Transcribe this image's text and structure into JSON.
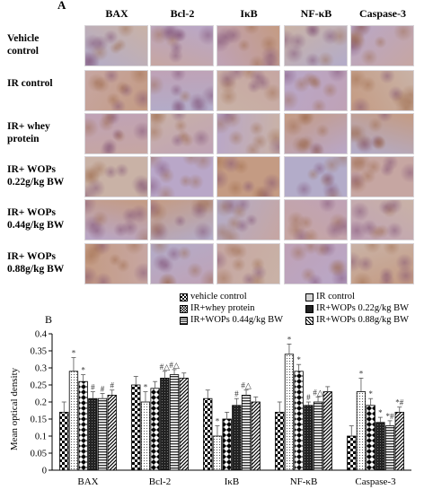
{
  "panel_a": {
    "label": "A",
    "columns": [
      "BAX",
      "Bcl-2",
      "IκB",
      "NF-κB",
      "Caspase-3"
    ],
    "rows": [
      {
        "line1": "Vehicle",
        "line2": "control"
      },
      {
        "line1": "IR control",
        "line2": ""
      },
      {
        "line1": "IR+  whey",
        "line2": "protein"
      },
      {
        "line1": "IR+ WOPs",
        "line2": "0.22g/kg BW"
      },
      {
        "line1": "IR+ WOPs",
        "line2": "0.44g/kg BW"
      },
      {
        "line1": "IR+ WOPs",
        "line2": "0.88g/kg BW"
      }
    ],
    "stain_colors": [
      "#b3acc9",
      "#c6a6a2",
      "#bfa2b6",
      "#c9b2a6",
      "#b9a7c8",
      "#c49b83"
    ]
  },
  "chart_data": {
    "type": "bar",
    "panel_label": "B",
    "categories": [
      "BAX",
      "Bcl-2",
      "IκB",
      "NF-κB",
      "Caspase-3"
    ],
    "ylabel": "Mean optical density",
    "xlabel": "",
    "ylim": [
      0,
      0.4
    ],
    "yticks": [
      "0",
      "0.05",
      "0.1",
      "0.15",
      "0.2",
      "0.25",
      "0.3",
      "0.35",
      "0.4"
    ],
    "grid": false,
    "legend_position": "top-right",
    "series": [
      {
        "name": "vehicle control",
        "pattern": "checker",
        "values": [
          0.17,
          0.25,
          0.21,
          0.17,
          0.1
        ],
        "errors": [
          0.03,
          0.025,
          0.025,
          0.03,
          0.03
        ],
        "marks": [
          "",
          "",
          "",
          "",
          ""
        ]
      },
      {
        "name": "IR control",
        "pattern": "dots",
        "values": [
          0.29,
          0.2,
          0.1,
          0.34,
          0.23
        ],
        "errors": [
          0.04,
          0.03,
          0.03,
          0.03,
          0.04
        ],
        "marks": [
          "*",
          "*",
          "*",
          "*",
          "*"
        ]
      },
      {
        "name": "IR+whey protein",
        "pattern": "diamonds",
        "values": [
          0.26,
          0.24,
          0.15,
          0.29,
          0.19
        ],
        "errors": [
          0.02,
          0.02,
          0.02,
          0.02,
          0.02
        ],
        "marks": [
          "*",
          "",
          "",
          "*",
          "*"
        ]
      },
      {
        "name": "IR+WOPs 0.22g/kg BW",
        "pattern": "solid-dark",
        "values": [
          0.21,
          0.27,
          0.19,
          0.19,
          0.14
        ],
        "errors": [
          0.02,
          0.02,
          0.02,
          0.01,
          0.015
        ],
        "marks": [
          "#",
          "#△",
          "#",
          "#",
          "*"
        ]
      },
      {
        "name": "IR+WOPs 0.44g/kg BW",
        "pattern": "hlines",
        "values": [
          0.21,
          0.28,
          0.22,
          0.2,
          0.13
        ],
        "errors": [
          0.015,
          0.015,
          0.015,
          0.015,
          0.015
        ],
        "marks": [
          "#",
          "#△",
          "#△",
          "#△",
          "*#"
        ]
      },
      {
        "name": "IR+WOPs 0.88g/kg BW",
        "pattern": "diag",
        "values": [
          0.22,
          0.27,
          0.2,
          0.23,
          0.17
        ],
        "errors": [
          0.015,
          0.015,
          0.015,
          0.015,
          0.015
        ],
        "marks": [
          "#",
          "",
          "",
          "",
          "*#"
        ]
      }
    ]
  }
}
